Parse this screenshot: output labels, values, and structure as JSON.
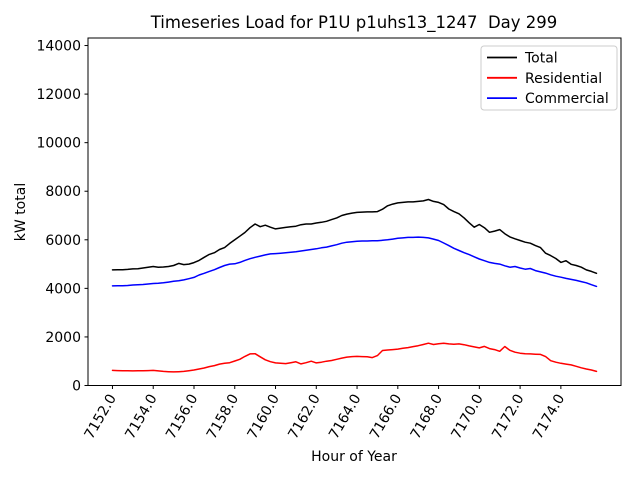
{
  "window": {
    "title": "Timeseries Load for P1U p1uhs13_1247  Day 299"
  },
  "chart_data": {
    "type": "line",
    "title": "Timeseries Load for P1U p1uhs13_1247  Day 299",
    "xlabel": "Hour of Year",
    "ylabel": "kW total",
    "xlim": [
      7150.8,
      7176.95
    ],
    "ylim": [
      0,
      14310
    ],
    "grid": false,
    "legend_position": "upper right",
    "x_tick_labels": [
      "7152.0",
      "7154.0",
      "7156.0",
      "7158.0",
      "7160.0",
      "7162.0",
      "7164.0",
      "7166.0",
      "7168.0",
      "7170.0",
      "7172.0",
      "7174.0"
    ],
    "y_ticks": [
      0,
      2000,
      4000,
      6000,
      8000,
      10000,
      12000,
      14000
    ],
    "x_start": 7152.0,
    "x_step": 0.25,
    "n_points": 96,
    "series": [
      {
        "name": "Total",
        "color": "#000000",
        "values": [
          4760,
          4770,
          4770,
          4780,
          4800,
          4810,
          4840,
          4870,
          4900,
          4870,
          4880,
          4900,
          4940,
          5030,
          4980,
          5000,
          5060,
          5150,
          5280,
          5400,
          5470,
          5600,
          5680,
          5850,
          6000,
          6150,
          6300,
          6500,
          6650,
          6540,
          6600,
          6520,
          6450,
          6480,
          6510,
          6540,
          6560,
          6620,
          6650,
          6650,
          6690,
          6720,
          6760,
          6830,
          6900,
          7000,
          7060,
          7100,
          7130,
          7140,
          7150,
          7150,
          7160,
          7260,
          7400,
          7470,
          7520,
          7540,
          7560,
          7560,
          7580,
          7600,
          7660,
          7580,
          7540,
          7450,
          7270,
          7160,
          7070,
          6900,
          6700,
          6520,
          6630,
          6500,
          6310,
          6360,
          6420,
          6250,
          6120,
          6040,
          5970,
          5900,
          5860,
          5760,
          5680,
          5450,
          5350,
          5230,
          5070,
          5140,
          4990,
          4940,
          4870,
          4760,
          4700,
          4620
        ]
      },
      {
        "name": "Residential",
        "color": "#ff0000",
        "values": [
          620,
          615,
          610,
          605,
          600,
          605,
          610,
          615,
          620,
          600,
          580,
          570,
          560,
          570,
          580,
          610,
          640,
          680,
          720,
          780,
          820,
          880,
          920,
          940,
          1010,
          1080,
          1200,
          1300,
          1310,
          1180,
          1060,
          980,
          930,
          915,
          900,
          940,
          975,
          890,
          940,
          1000,
          930,
          960,
          1000,
          1030,
          1080,
          1130,
          1170,
          1190,
          1200,
          1190,
          1180,
          1150,
          1230,
          1440,
          1460,
          1480,
          1500,
          1530,
          1560,
          1600,
          1640,
          1690,
          1740,
          1690,
          1720,
          1740,
          1715,
          1700,
          1715,
          1680,
          1630,
          1590,
          1550,
          1610,
          1520,
          1480,
          1410,
          1605,
          1450,
          1370,
          1330,
          1310,
          1300,
          1290,
          1280,
          1190,
          1020,
          960,
          915,
          880,
          850,
          790,
          730,
          680,
          640,
          580
        ]
      },
      {
        "name": "Commercial",
        "color": "#0000ff",
        "values": [
          4100,
          4110,
          4110,
          4120,
          4140,
          4150,
          4160,
          4180,
          4200,
          4210,
          4230,
          4260,
          4290,
          4310,
          4350,
          4400,
          4450,
          4550,
          4620,
          4700,
          4770,
          4860,
          4940,
          5000,
          5010,
          5070,
          5150,
          5220,
          5280,
          5330,
          5380,
          5420,
          5430,
          5450,
          5470,
          5490,
          5510,
          5540,
          5570,
          5600,
          5630,
          5670,
          5700,
          5750,
          5800,
          5860,
          5900,
          5920,
          5940,
          5950,
          5950,
          5960,
          5960,
          5980,
          6000,
          6030,
          6060,
          6080,
          6100,
          6100,
          6110,
          6100,
          6080,
          6030,
          5970,
          5870,
          5760,
          5650,
          5560,
          5470,
          5390,
          5300,
          5210,
          5140,
          5070,
          5030,
          5000,
          4930,
          4870,
          4900,
          4840,
          4790,
          4820,
          4730,
          4680,
          4630,
          4560,
          4500,
          4460,
          4410,
          4370,
          4330,
          4280,
          4230,
          4150,
          4080
        ]
      }
    ],
    "legend": {
      "entries": [
        "Total",
        "Residential",
        "Commercial"
      ],
      "frame_color": "#cccccc"
    }
  }
}
